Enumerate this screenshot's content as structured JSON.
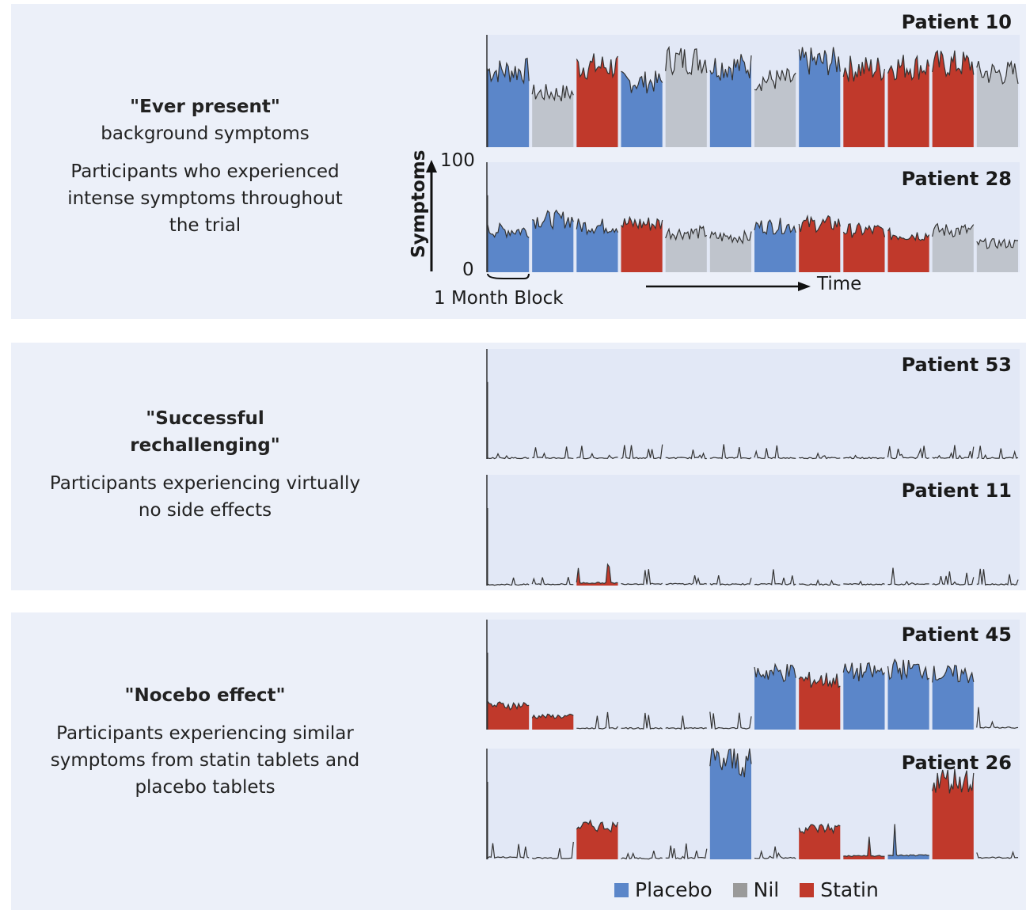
{
  "groups": [
    {
      "title_lines": [
        "\"Ever present\"",
        "background symptoms"
      ],
      "desc_lines": [
        "Participants who experienced",
        "intense symptoms throughout",
        "the trial"
      ]
    },
    {
      "title_lines": [
        "\"Successful",
        "rechallenging\""
      ],
      "desc_lines": [
        "Participants experiencing virtually",
        "no side effects"
      ]
    },
    {
      "title_lines": [
        "\"Nocebo effect\""
      ],
      "desc_lines": [
        "Participants experiencing similar",
        "symptoms from statin tablets and",
        "placebo tablets"
      ]
    }
  ],
  "axis": {
    "ylabel": "Symptoms",
    "ymax_label": "100",
    "ymin_label": "0",
    "block_label": "1 Month Block",
    "time_label": "Time"
  },
  "legend": [
    {
      "label": "Placebo",
      "color": "#5b86c9"
    },
    {
      "label": "Nil",
      "color": "#9a9a9a"
    },
    {
      "label": "Statin",
      "color": "#c0392b"
    }
  ],
  "colors": {
    "placebo": "#5b86c9",
    "nil": "#bfc4cc",
    "statin": "#c0392b",
    "background": "#ecf0f9",
    "panel": "#e2e8f6"
  },
  "chart_data": {
    "type": "area",
    "ylim": [
      0,
      100
    ],
    "block_unit": "1 month",
    "patients": [
      {
        "name": "Patient 10",
        "blocks": [
          "Placebo",
          "Nil",
          "Statin",
          "Placebo",
          "Nil",
          "Placebo",
          "Nil",
          "Placebo",
          "Statin",
          "Statin",
          "Statin",
          "Nil"
        ],
        "mean_symptom": [
          68,
          48,
          72,
          58,
          78,
          72,
          60,
          76,
          70,
          72,
          74,
          66
        ]
      },
      {
        "name": "Patient 28",
        "blocks": [
          "Placebo",
          "Placebo",
          "Placebo",
          "Statin",
          "Nil",
          "Nil",
          "Placebo",
          "Statin",
          "Statin",
          "Statin",
          "Nil",
          "Nil"
        ],
        "mean_symptom": [
          38,
          48,
          42,
          44,
          36,
          32,
          42,
          44,
          38,
          34,
          38,
          26
        ]
      },
      {
        "name": "Patient 53",
        "blocks": [
          "Nil",
          "Nil",
          "Nil",
          "Nil",
          "Nil",
          "Nil",
          "Nil",
          "Nil",
          "Nil",
          "Nil",
          "Nil",
          "Nil"
        ],
        "mean_symptom": [
          1,
          1,
          1,
          1,
          1,
          1,
          1,
          1,
          1,
          1,
          1,
          1
        ]
      },
      {
        "name": "Patient 11",
        "blocks": [
          "Nil",
          "Nil",
          "Statin",
          "Nil",
          "Nil",
          "Nil",
          "Nil",
          "Nil",
          "Nil",
          "Nil",
          "Nil",
          "Nil"
        ],
        "mean_symptom": [
          1,
          2,
          6,
          3,
          3,
          2,
          2,
          1,
          2,
          2,
          2,
          2
        ]
      },
      {
        "name": "Patient 45",
        "blocks": [
          "Statin",
          "Statin",
          "Nil",
          "Nil",
          "Nil",
          "Nil",
          "Placebo",
          "Statin",
          "Placebo",
          "Placebo",
          "Placebo",
          "Nil"
        ],
        "mean_symptom": [
          22,
          12,
          2,
          2,
          2,
          2,
          52,
          45,
          52,
          55,
          50,
          4
        ]
      },
      {
        "name": "Patient 26",
        "blocks": [
          "Nil",
          "Nil",
          "Statin",
          "Nil",
          "Nil",
          "Placebo",
          "Nil",
          "Statin",
          "Statin",
          "Placebo",
          "Statin",
          "Nil"
        ],
        "mean_symptom": [
          4,
          2,
          30,
          1,
          2,
          88,
          2,
          28,
          8,
          10,
          72,
          3
        ]
      }
    ]
  }
}
